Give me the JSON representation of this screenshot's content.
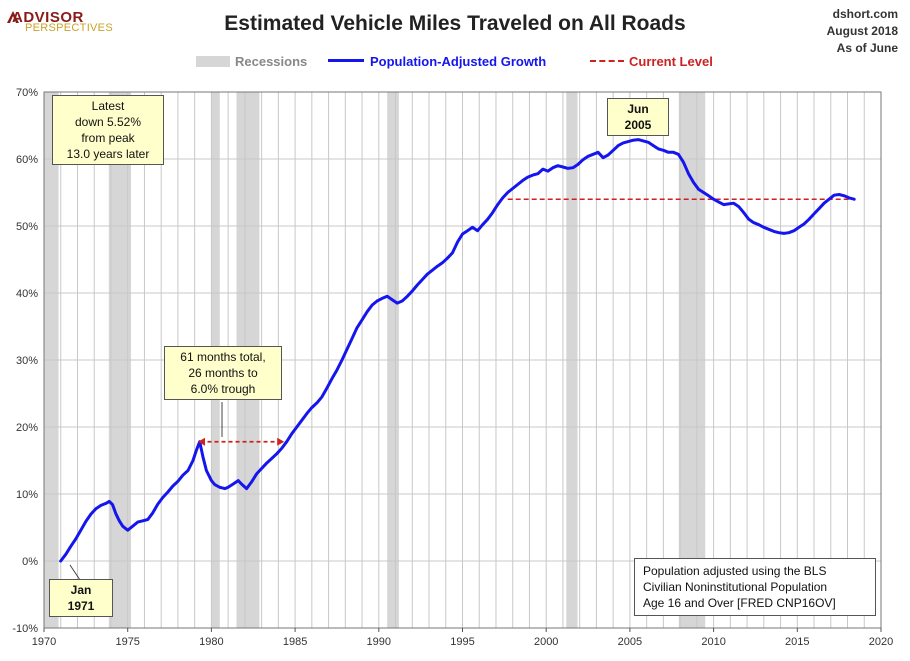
{
  "branding": {
    "logo_line1": "ADVISOR",
    "logo_line2": "PERSPECTIVES"
  },
  "credit": {
    "site": "dshort.com",
    "date": "August 2018",
    "asof": "As of June"
  },
  "colors": {
    "line": "#1515ee",
    "current": "#cc2222",
    "recession": "#d6d6d6",
    "callout_bg": "#ffffcc"
  },
  "chart_data": {
    "type": "line",
    "title": "Estimated Vehicle Miles Traveled on All Roads",
    "xlabel": "",
    "ylabel": "",
    "xlim": [
      1970,
      2020
    ],
    "ylim": [
      -10,
      70
    ],
    "x_ticks": [
      "1970",
      "1975",
      "1980",
      "1985",
      "1990",
      "1995",
      "2000",
      "2005",
      "2010",
      "2015",
      "2020"
    ],
    "y_ticks": [
      "-10%",
      "0%",
      "10%",
      "20%",
      "30%",
      "40%",
      "50%",
      "60%",
      "70%"
    ],
    "grid": true,
    "legend": {
      "position": "top",
      "items": [
        "Recessions",
        "Population-Adjusted Growth",
        "Current Level"
      ]
    },
    "recessions": [
      [
        1969.92,
        1970.87
      ],
      [
        1973.87,
        1975.2
      ],
      [
        1980.0,
        1980.5
      ],
      [
        1981.5,
        1982.87
      ],
      [
        1990.5,
        1991.2
      ],
      [
        2001.2,
        2001.87
      ],
      [
        2007.92,
        2009.5
      ]
    ],
    "series": [
      {
        "name": "Population-Adjusted Growth",
        "x": [
          1971.0,
          1971.3,
          1971.6,
          1971.9,
          1972.2,
          1972.5,
          1972.8,
          1973.1,
          1973.4,
          1973.7,
          1973.9,
          1974.1,
          1974.3,
          1974.5,
          1974.7,
          1975.0,
          1975.3,
          1975.6,
          1975.9,
          1976.2,
          1976.5,
          1976.8,
          1977.1,
          1977.4,
          1977.7,
          1978.0,
          1978.3,
          1978.6,
          1978.9,
          1979.1,
          1979.3,
          1979.5,
          1979.7,
          1980.0,
          1980.2,
          1980.5,
          1980.8,
          1981.0,
          1981.3,
          1981.6,
          1981.8,
          1982.1,
          1982.4,
          1982.7,
          1983.0,
          1983.3,
          1983.6,
          1983.9,
          1984.2,
          1984.5,
          1984.8,
          1985.1,
          1985.4,
          1985.7,
          1986.0,
          1986.3,
          1986.6,
          1986.9,
          1987.2,
          1987.5,
          1987.8,
          1988.1,
          1988.4,
          1988.7,
          1989.0,
          1989.3,
          1989.6,
          1989.9,
          1990.2,
          1990.5,
          1990.8,
          1991.1,
          1991.4,
          1991.7,
          1992.0,
          1992.3,
          1992.6,
          1992.9,
          1993.2,
          1993.5,
          1993.8,
          1994.1,
          1994.4,
          1994.7,
          1995.0,
          1995.3,
          1995.6,
          1995.9,
          1996.2,
          1996.5,
          1996.8,
          1997.1,
          1997.4,
          1997.7,
          1998.0,
          1998.3,
          1998.6,
          1998.9,
          1999.2,
          1999.5,
          1999.8,
          2000.1,
          2000.4,
          2000.7,
          2001.0,
          2001.3,
          2001.6,
          2001.9,
          2002.2,
          2002.5,
          2002.8,
          2003.1,
          2003.4,
          2003.7,
          2004.0,
          2004.3,
          2004.6,
          2004.9,
          2005.2,
          2005.5,
          2005.8,
          2006.1,
          2006.4,
          2006.7,
          2007.0,
          2007.3,
          2007.6,
          2007.9,
          2008.2,
          2008.5,
          2008.8,
          2009.1,
          2009.4,
          2009.7,
          2010.0,
          2010.3,
          2010.6,
          2010.9,
          2011.2,
          2011.5,
          2011.8,
          2012.1,
          2012.4,
          2012.7,
          2013.0,
          2013.3,
          2013.6,
          2013.9,
          2014.2,
          2014.5,
          2014.8,
          2015.1,
          2015.4,
          2015.7,
          2016.0,
          2016.3,
          2016.6,
          2016.9,
          2017.2,
          2017.5,
          2017.8,
          2018.1,
          2018.4
        ],
        "values": [
          0.0,
          1.0,
          2.2,
          3.3,
          4.6,
          5.9,
          7.0,
          7.8,
          8.3,
          8.6,
          8.9,
          8.4,
          7.0,
          6.0,
          5.2,
          4.6,
          5.2,
          5.8,
          6.0,
          6.2,
          7.2,
          8.5,
          9.5,
          10.3,
          11.2,
          11.9,
          12.8,
          13.5,
          15.0,
          16.5,
          17.8,
          15.5,
          13.5,
          12.0,
          11.4,
          11.0,
          10.8,
          11.0,
          11.5,
          12.0,
          11.5,
          10.8,
          11.8,
          13.0,
          13.8,
          14.6,
          15.3,
          16.0,
          16.8,
          17.8,
          19.0,
          20.0,
          21.0,
          22.0,
          22.9,
          23.6,
          24.5,
          25.8,
          27.2,
          28.5,
          30.0,
          31.6,
          33.2,
          34.8,
          36.0,
          37.2,
          38.2,
          38.8,
          39.2,
          39.5,
          39.0,
          38.5,
          38.8,
          39.5,
          40.3,
          41.2,
          42.0,
          42.8,
          43.4,
          44.0,
          44.5,
          45.2,
          46.0,
          47.6,
          48.8,
          49.3,
          49.8,
          49.3,
          50.2,
          51.0,
          52.0,
          53.2,
          54.2,
          55.0,
          55.6,
          56.2,
          56.8,
          57.3,
          57.6,
          57.8,
          58.5,
          58.2,
          58.7,
          59.0,
          58.8,
          58.6,
          58.7,
          59.2,
          59.9,
          60.4,
          60.7,
          61.0,
          60.2,
          60.6,
          61.3,
          62.0,
          62.4,
          62.6,
          62.8,
          62.9,
          62.7,
          62.5,
          62.0,
          61.5,
          61.3,
          61.0,
          61.0,
          60.7,
          59.5,
          57.8,
          56.5,
          55.5,
          55.0,
          54.5,
          54.0,
          53.6,
          53.2,
          53.3,
          53.4,
          52.9,
          52.0,
          51.0,
          50.5,
          50.2,
          49.8,
          49.5,
          49.2,
          49.0,
          48.9,
          49.0,
          49.3,
          49.8,
          50.3,
          51.0,
          51.8,
          52.6,
          53.4,
          54.0,
          54.6,
          54.7,
          54.5,
          54.2,
          54.0
        ]
      },
      {
        "name": "Current Level",
        "value": 54.0,
        "x_start": 1997.7,
        "x_end": 2018.4
      }
    ],
    "annotations": {
      "latest_lines": [
        "Latest",
        "down 5.52%",
        "from peak",
        "13.0 years later"
      ],
      "peak_label": "Jun 2005",
      "start_label": "Jan 1971",
      "span_lines": [
        "61 months total,",
        "26 months to",
        "6.0% trough"
      ],
      "note_lines": [
        "Population adjusted using the BLS",
        "Civilian Noninstitutional Population",
        "Age 16 and Over [FRED CNP16OV]"
      ]
    }
  }
}
